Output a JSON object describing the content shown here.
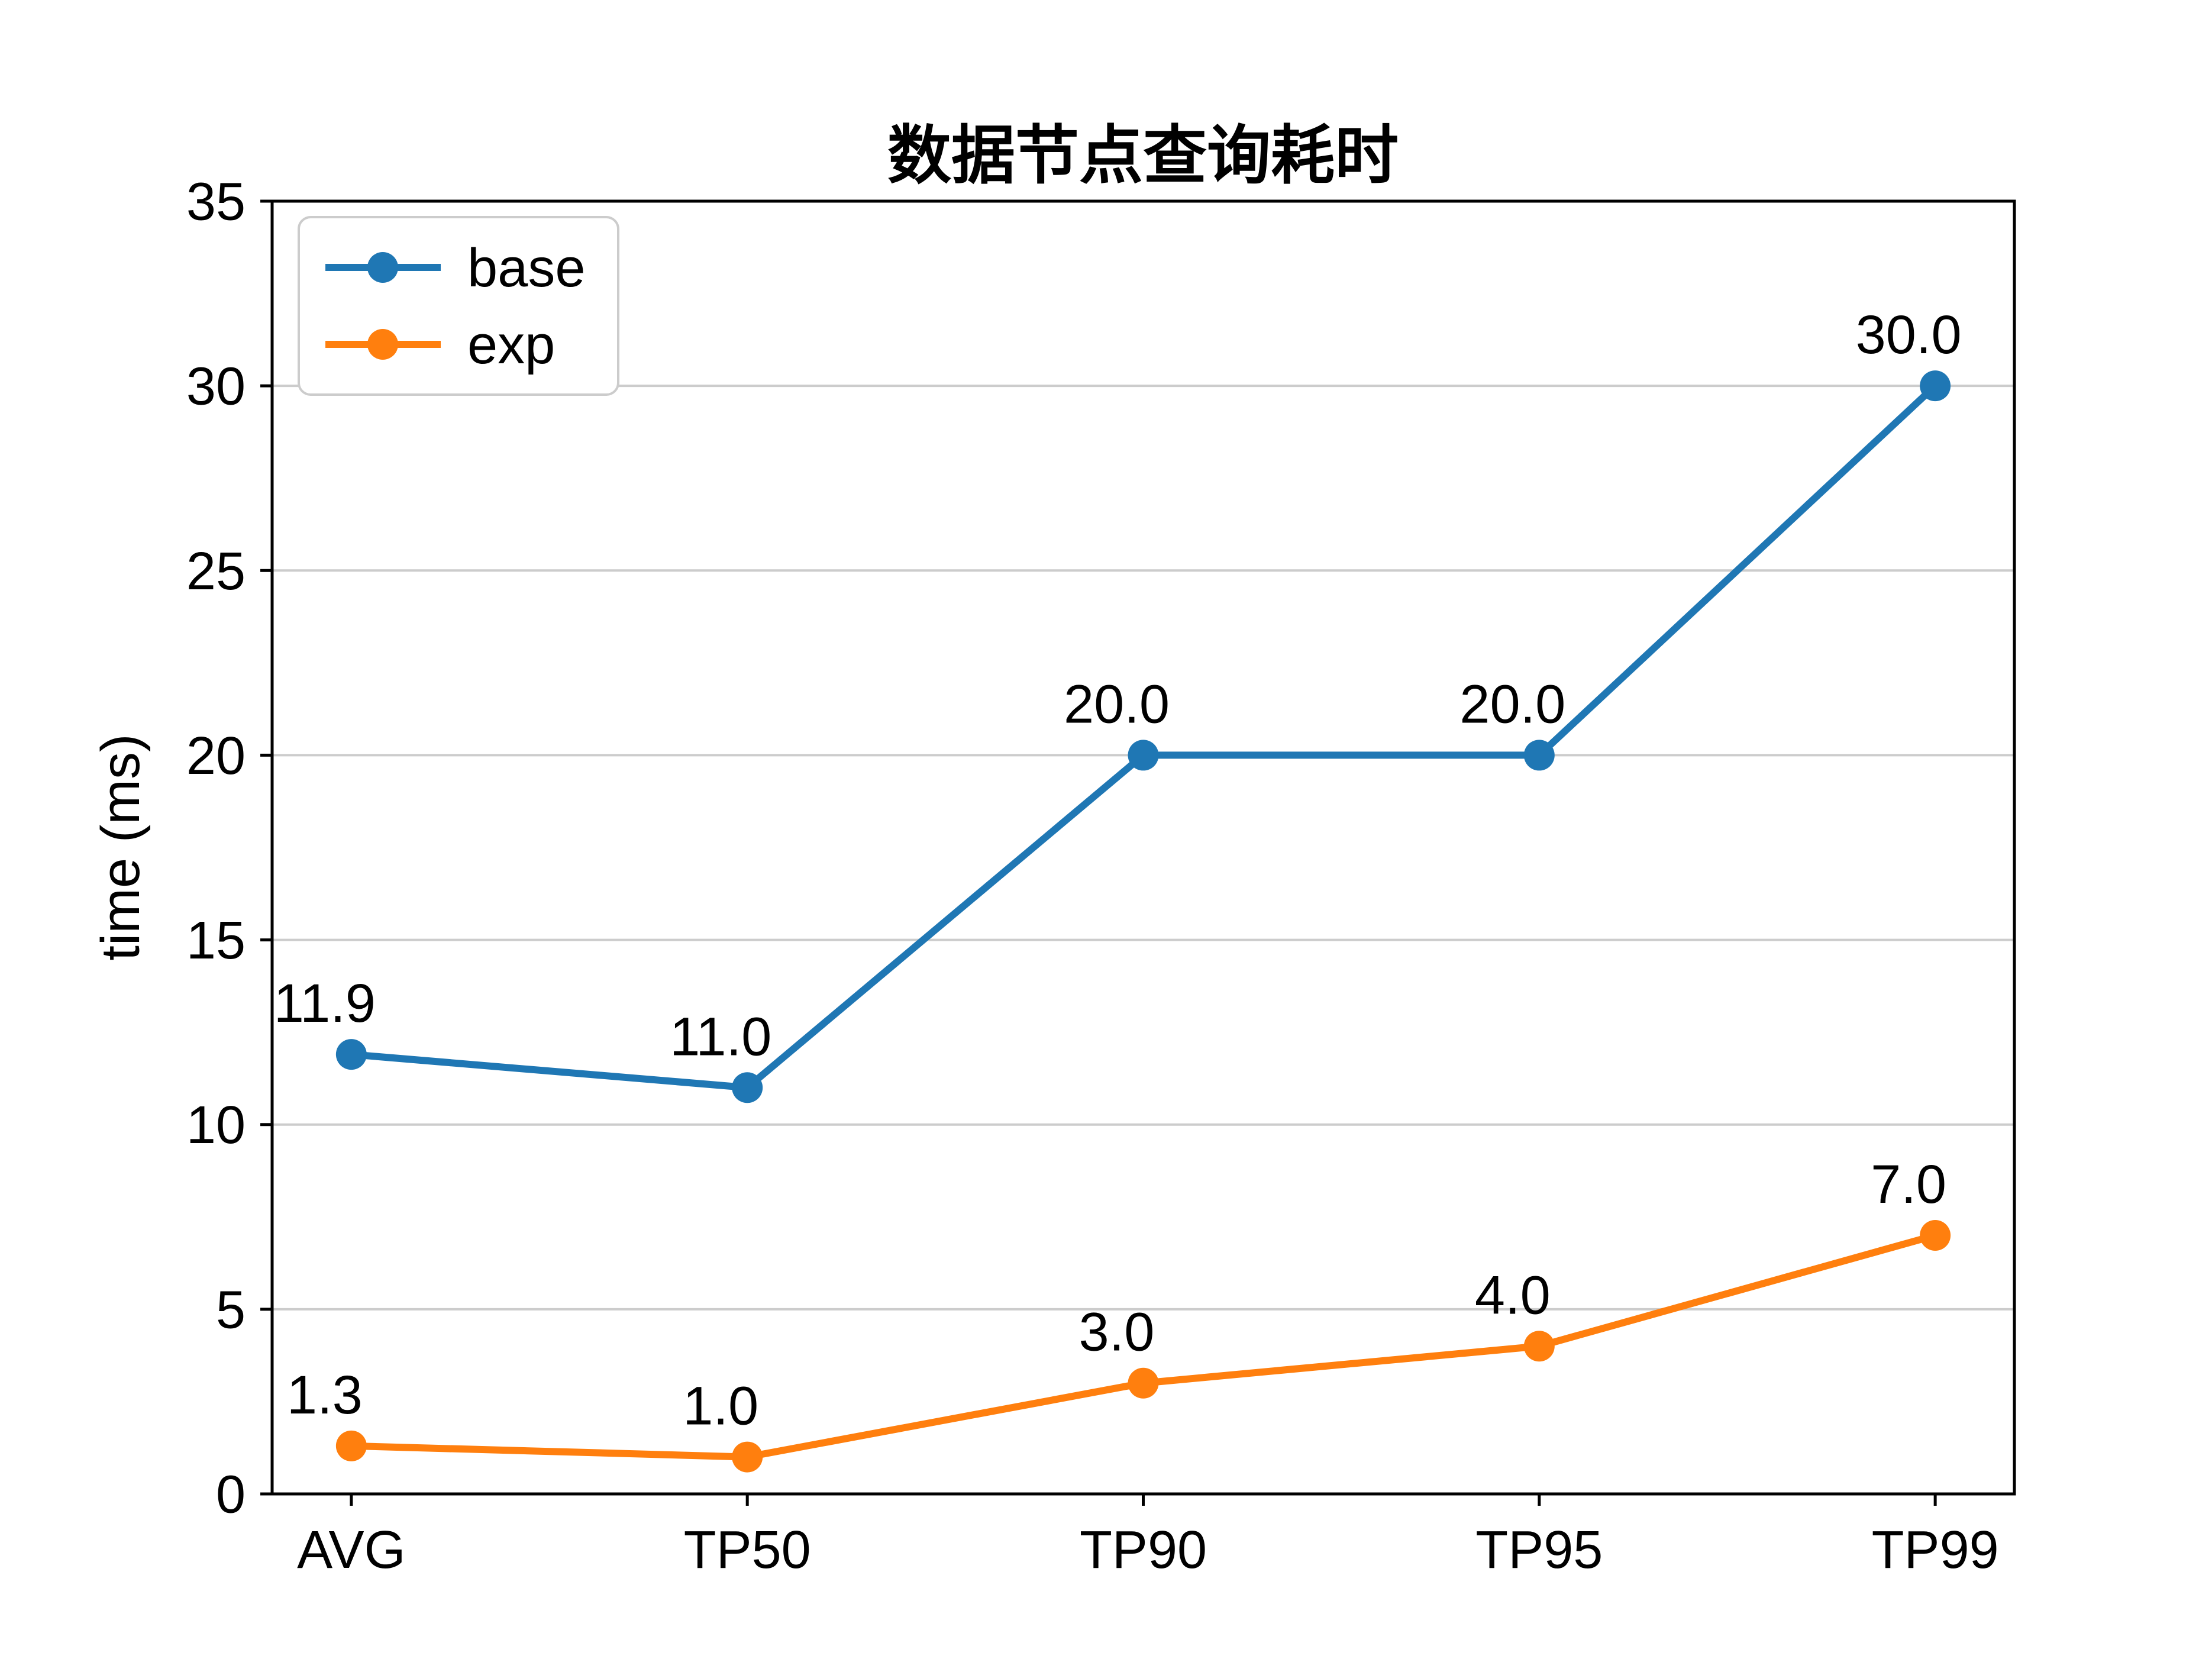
{
  "figure": {
    "background": "#ffffff"
  },
  "chart_data": {
    "type": "line",
    "title": "数据节点查询耗时",
    "xlabel": "",
    "ylabel": "time (ms)",
    "categories": [
      "AVG",
      "TP50",
      "TP90",
      "TP95",
      "TP99"
    ],
    "series": [
      {
        "name": "base",
        "color": "#1f77b4",
        "values": [
          11.9,
          11.0,
          20.0,
          20.0,
          30.0
        ]
      },
      {
        "name": "exp",
        "color": "#ff7f0e",
        "values": [
          1.3,
          1.0,
          3.0,
          4.0,
          7.0
        ]
      }
    ],
    "ylim": [
      0,
      35
    ],
    "yticks": [
      0,
      5,
      10,
      15,
      20,
      25,
      30,
      35
    ],
    "grid": "horizontal",
    "legend_position": "upper-left",
    "value_labels": true,
    "value_label_format": "one-decimal"
  },
  "colors": {
    "grid": "#cccccc",
    "axis": "#000000",
    "text": "#000000",
    "legend_border": "#cccccc",
    "legend_background": "#ffffff",
    "background": "#ffffff"
  }
}
